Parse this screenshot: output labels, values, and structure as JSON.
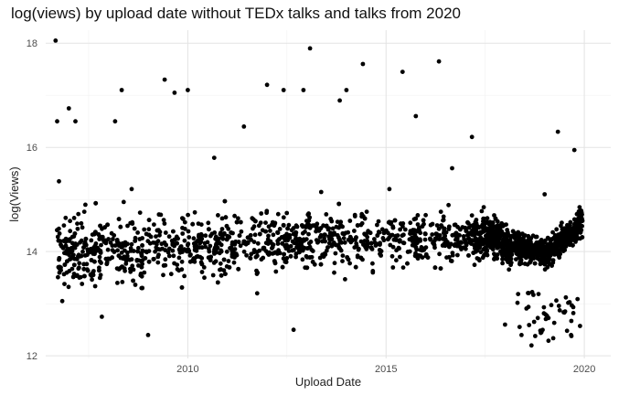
{
  "chart_data": {
    "type": "scatter",
    "title": "log(views) by upload date without TEDx talks and talks from 2020",
    "xlabel": "Upload Date",
    "ylabel": "log(Views)",
    "x_ticks": [
      "2010",
      "2015",
      "2020"
    ],
    "y_ticks": [
      "12",
      "14",
      "16",
      "18"
    ],
    "xlim": [
      "2006-06-01",
      "2020-09-01"
    ],
    "ylim": [
      11.95,
      18.25
    ],
    "grid": true,
    "point_color": "#000000",
    "sample_points": [
      {
        "x": "2006-09-01",
        "y": 18.05
      },
      {
        "x": "2006-09-15",
        "y": 16.5
      },
      {
        "x": "2006-10-01",
        "y": 15.35
      },
      {
        "x": "2006-10-15",
        "y": 14.2
      },
      {
        "x": "2006-11-01",
        "y": 13.05
      },
      {
        "x": "2007-01-01",
        "y": 16.75
      },
      {
        "x": "2007-03-01",
        "y": 16.5
      },
      {
        "x": "2007-06-01",
        "y": 14.9
      },
      {
        "x": "2007-09-01",
        "y": 14.0
      },
      {
        "x": "2007-11-01",
        "y": 12.75
      },
      {
        "x": "2008-03-01",
        "y": 16.5
      },
      {
        "x": "2008-05-01",
        "y": 17.1
      },
      {
        "x": "2008-08-01",
        "y": 15.2
      },
      {
        "x": "2008-11-01",
        "y": 13.3
      },
      {
        "x": "2009-01-01",
        "y": 12.4
      },
      {
        "x": "2009-06-01",
        "y": 17.3
      },
      {
        "x": "2009-09-01",
        "y": 17.05
      },
      {
        "x": "2009-11-01",
        "y": 14.1
      },
      {
        "x": "2010-01-01",
        "y": 17.1
      },
      {
        "x": "2010-06-01",
        "y": 13.5
      },
      {
        "x": "2010-09-01",
        "y": 15.8
      },
      {
        "x": "2011-01-01",
        "y": 14.3
      },
      {
        "x": "2011-06-01",
        "y": 16.4
      },
      {
        "x": "2011-10-01",
        "y": 13.2
      },
      {
        "x": "2012-01-01",
        "y": 17.2
      },
      {
        "x": "2012-06-01",
        "y": 17.1
      },
      {
        "x": "2012-09-01",
        "y": 12.5
      },
      {
        "x": "2012-12-01",
        "y": 17.1
      },
      {
        "x": "2013-02-01",
        "y": 17.9
      },
      {
        "x": "2013-06-01",
        "y": 14.5
      },
      {
        "x": "2013-11-01",
        "y": 16.9
      },
      {
        "x": "2014-01-01",
        "y": 17.1
      },
      {
        "x": "2014-06-01",
        "y": 17.6
      },
      {
        "x": "2014-09-01",
        "y": 13.6
      },
      {
        "x": "2015-02-01",
        "y": 15.2
      },
      {
        "x": "2015-06-01",
        "y": 17.45
      },
      {
        "x": "2015-10-01",
        "y": 16.6
      },
      {
        "x": "2016-01-01",
        "y": 14.7
      },
      {
        "x": "2016-05-01",
        "y": 17.65
      },
      {
        "x": "2016-09-01",
        "y": 15.6
      },
      {
        "x": "2017-01-01",
        "y": 14.2
      },
      {
        "x": "2017-03-01",
        "y": 16.2
      },
      {
        "x": "2017-09-01",
        "y": 14.3
      },
      {
        "x": "2018-01-01",
        "y": 12.6
      },
      {
        "x": "2018-06-01",
        "y": 12.4
      },
      {
        "x": "2018-09-01",
        "y": 12.2
      },
      {
        "x": "2019-01-01",
        "y": 15.1
      },
      {
        "x": "2019-05-01",
        "y": 16.3
      },
      {
        "x": "2019-09-01",
        "y": 12.4
      },
      {
        "x": "2019-10-01",
        "y": 15.95
      },
      {
        "x": "2019-12-01",
        "y": 14.6
      }
    ]
  }
}
